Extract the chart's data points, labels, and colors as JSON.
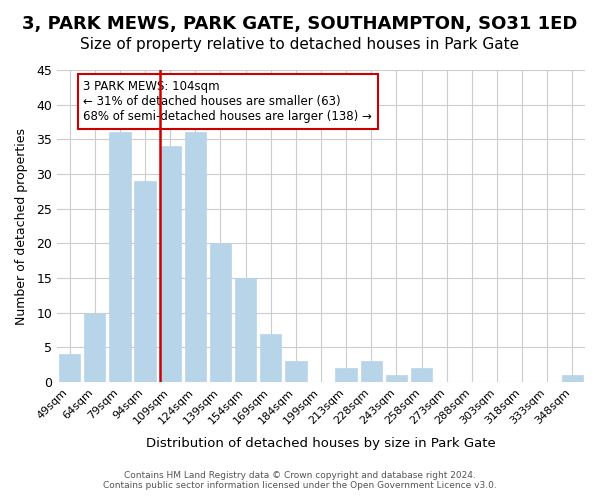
{
  "title": "3, PARK MEWS, PARK GATE, SOUTHAMPTON, SO31 1ED",
  "subtitle": "Size of property relative to detached houses in Park Gate",
  "xlabel": "Distribution of detached houses by size in Park Gate",
  "ylabel": "Number of detached properties",
  "bar_color": "#b8d4e8",
  "categories": [
    "49sqm",
    "64sqm",
    "79sqm",
    "94sqm",
    "109sqm",
    "124sqm",
    "139sqm",
    "154sqm",
    "169sqm",
    "184sqm",
    "199sqm",
    "213sqm",
    "228sqm",
    "243sqm",
    "258sqm",
    "273sqm",
    "288sqm",
    "303sqm",
    "318sqm",
    "333sqm",
    "348sqm"
  ],
  "values": [
    4,
    10,
    36,
    29,
    34,
    36,
    20,
    15,
    7,
    3,
    0,
    2,
    3,
    1,
    2,
    0,
    0,
    0,
    0,
    0,
    1
  ],
  "ylim": [
    0,
    45
  ],
  "yticks": [
    0,
    5,
    10,
    15,
    20,
    25,
    30,
    35,
    40,
    45
  ],
  "vline_x": 3.575,
  "vline_color": "#cc0000",
  "annotation_title": "3 PARK MEWS: 104sqm",
  "annotation_line1": "← 31% of detached houses are smaller (63)",
  "annotation_line2": "68% of semi-detached houses are larger (138) →",
  "annotation_box_color": "#ffffff",
  "annotation_box_edge": "#cc0000",
  "footer_line1": "Contains HM Land Registry data © Crown copyright and database right 2024.",
  "footer_line2": "Contains public sector information licensed under the Open Government Licence v3.0.",
  "background_color": "#ffffff",
  "grid_color": "#cccccc",
  "title_fontsize": 13,
  "subtitle_fontsize": 11
}
